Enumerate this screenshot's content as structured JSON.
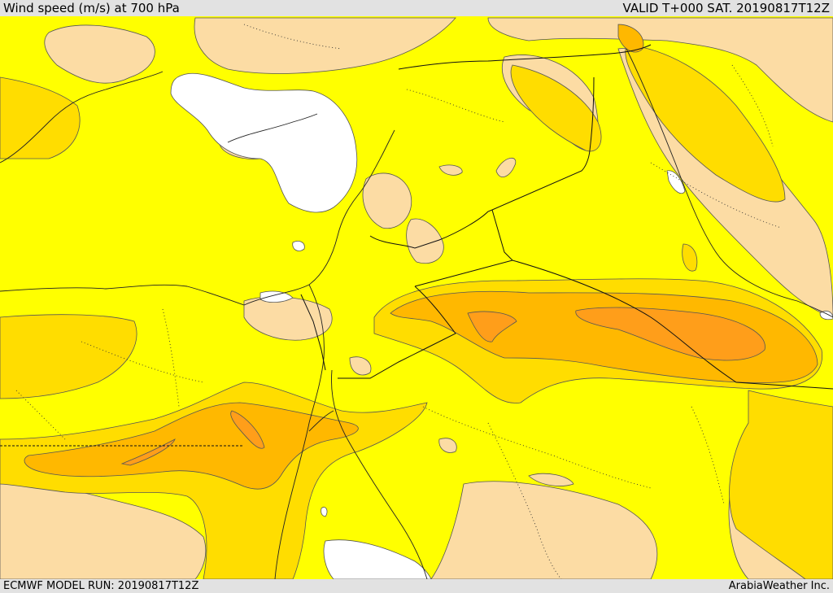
{
  "header": {
    "title": "Wind speed (m/s) at 700 hPa",
    "valid": "VALID T+000 SAT. 20190817T12Z"
  },
  "footer": {
    "model_run": "ECMWF MODEL RUN: 20190817T12Z",
    "brand": "ArabiaWeather Inc."
  },
  "legend_colors": {
    "lowest": "#ffffff",
    "light": "#fcdca4",
    "base": "#ffff00",
    "moderate": "#ffdd00",
    "strong": "#ffb800",
    "stronger": "#ff9e1a"
  }
}
